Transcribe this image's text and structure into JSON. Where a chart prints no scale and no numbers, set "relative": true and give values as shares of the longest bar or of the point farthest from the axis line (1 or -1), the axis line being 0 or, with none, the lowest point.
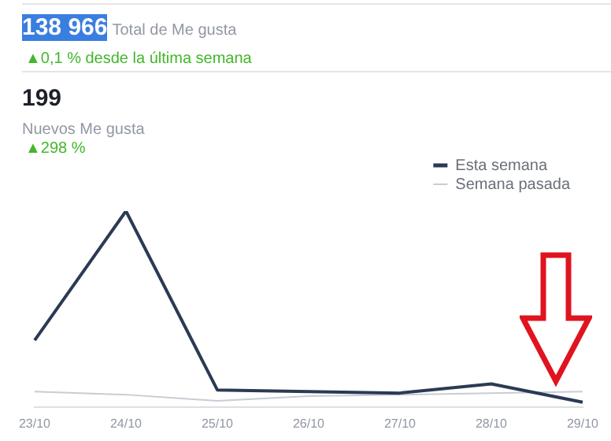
{
  "chart_data": {
    "type": "line",
    "relative": true,
    "annotations": [
      "138 966",
      "Total de Me gusta",
      "▲0,1 % desde la última semana",
      "199",
      "Nuevos Me gusta",
      "▲298 %"
    ],
    "categories": [
      "23/10",
      "24/10",
      "25/10",
      "26/10",
      "27/10",
      "28/10",
      "29/10"
    ],
    "series": [
      {
        "name": "Esta semana",
        "color": "#2b3a55",
        "values": [
          0.34,
          1,
          0.087,
          0.079,
          0.071,
          0.118,
          0.024
        ]
      },
      {
        "name": "Semana pasada",
        "color": "#c8ccd4",
        "values": [
          0.079,
          0.063,
          0.031,
          0.055,
          0.063,
          0.071,
          0.079
        ]
      }
    ],
    "legend": "top right",
    "grid": false,
    "marker": "none"
  }
}
